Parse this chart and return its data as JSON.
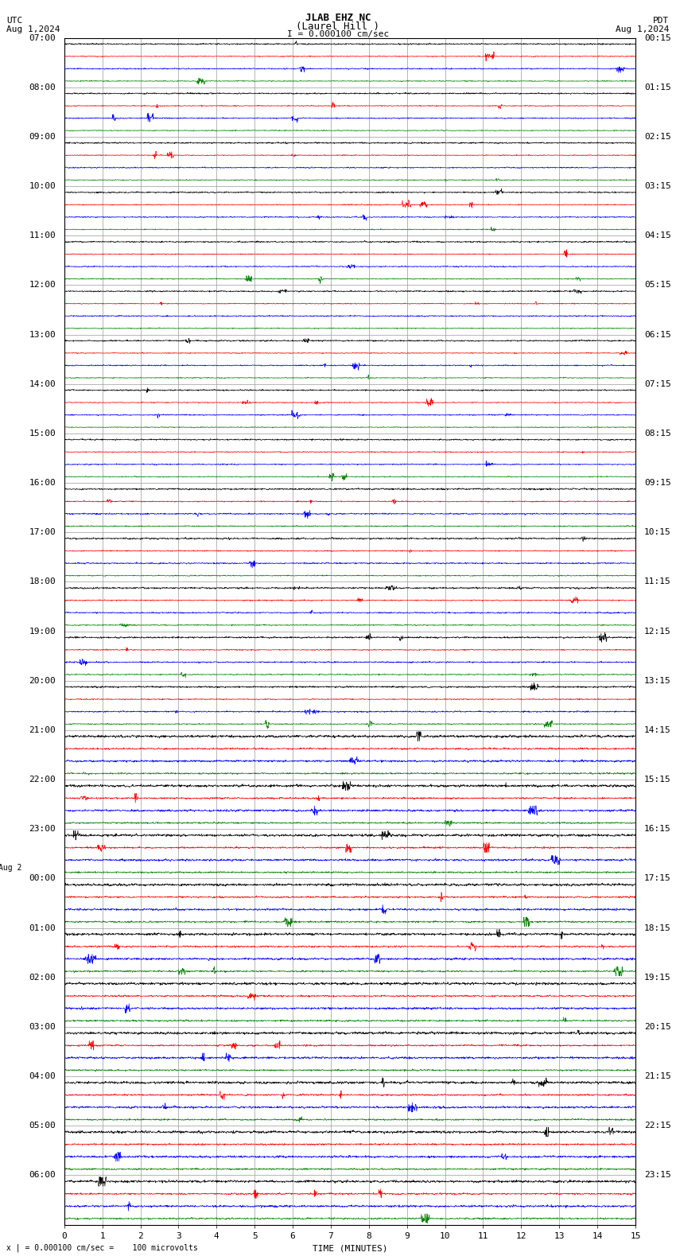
{
  "title_line1": "JLAB EHZ NC",
  "title_line2": "(Laurel Hill )",
  "title_scale": "I = 0.000100 cm/sec",
  "left_header_line1": "UTC",
  "left_header_line2": "Aug 1,2024",
  "right_header_line1": "PDT",
  "right_header_line2": "Aug 1,2024",
  "footer": "x | = 0.000100 cm/sec =    100 microvolts",
  "xlabel": "TIME (MINUTES)",
  "xlim": [
    0,
    15
  ],
  "xticks": [
    0,
    1,
    2,
    3,
    4,
    5,
    6,
    7,
    8,
    9,
    10,
    11,
    12,
    13,
    14,
    15
  ],
  "left_times": [
    "07:00",
    "08:00",
    "09:00",
    "10:00",
    "11:00",
    "12:00",
    "13:00",
    "14:00",
    "15:00",
    "16:00",
    "17:00",
    "18:00",
    "19:00",
    "20:00",
    "21:00",
    "22:00",
    "23:00",
    "00:00",
    "01:00",
    "02:00",
    "03:00",
    "04:00",
    "05:00",
    "06:00"
  ],
  "aug2_row": 17,
  "right_times": [
    "00:15",
    "01:15",
    "02:15",
    "03:15",
    "04:15",
    "05:15",
    "06:15",
    "07:15",
    "08:15",
    "09:15",
    "10:15",
    "11:15",
    "12:15",
    "13:15",
    "14:15",
    "15:15",
    "16:15",
    "17:15",
    "18:15",
    "19:15",
    "20:15",
    "21:15",
    "22:15",
    "23:15"
  ],
  "trace_colors": [
    "black",
    "red",
    "blue",
    "green"
  ],
  "n_rows": 24,
  "traces_per_row": 4,
  "noise_scale": [
    0.06,
    0.04,
    0.05,
    0.04
  ],
  "fig_width": 8.5,
  "fig_height": 15.84,
  "dpi": 100,
  "bg_color": "#ffffff",
  "grid_color": "#999999",
  "trace_lw": 0.5,
  "font_size": 8,
  "title_font_size": 9
}
